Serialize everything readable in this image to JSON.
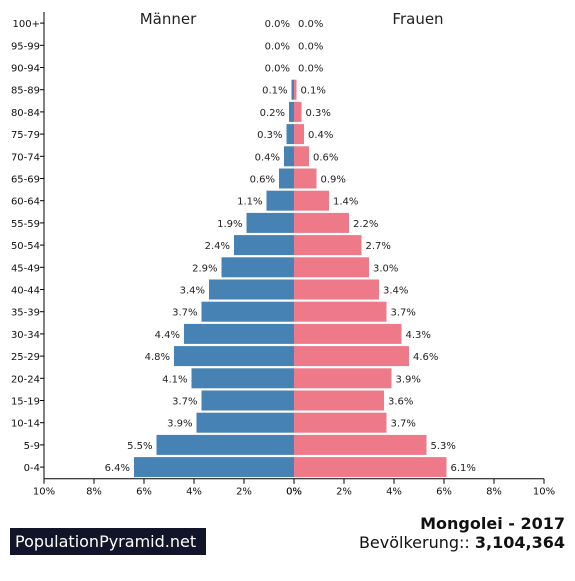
{
  "chart_data": {
    "type": "bar",
    "orientation": "horizontal-pyramid",
    "categories": [
      "100+",
      "95-99",
      "90-94",
      "85-89",
      "80-84",
      "75-79",
      "70-74",
      "65-69",
      "60-64",
      "55-59",
      "50-54",
      "45-49",
      "40-44",
      "35-39",
      "30-34",
      "25-29",
      "20-24",
      "15-19",
      "10-14",
      "5-9",
      "0-4"
    ],
    "series": [
      {
        "name": "Männer",
        "color": "#4682b4",
        "values": [
          0.0,
          0.0,
          0.0,
          0.1,
          0.2,
          0.3,
          0.4,
          0.6,
          1.1,
          1.9,
          2.4,
          2.9,
          3.4,
          3.7,
          4.4,
          4.8,
          4.1,
          3.7,
          3.9,
          5.5,
          6.4
        ],
        "labels": [
          "0.0%",
          "0.0%",
          "0.0%",
          "0.1%",
          "0.2%",
          "0.3%",
          "0.4%",
          "0.6%",
          "1.1%",
          "1.9%",
          "2.4%",
          "2.9%",
          "3.4%",
          "3.7%",
          "4.4%",
          "4.8%",
          "4.1%",
          "3.7%",
          "3.9%",
          "5.5%",
          "6.4%"
        ]
      },
      {
        "name": "Frauen",
        "color": "#ee7989",
        "values": [
          0.0,
          0.0,
          0.0,
          0.1,
          0.3,
          0.4,
          0.6,
          0.9,
          1.4,
          2.2,
          2.7,
          3.0,
          3.4,
          3.7,
          4.3,
          4.6,
          3.9,
          3.6,
          3.7,
          5.3,
          6.1
        ],
        "labels": [
          "0.0%",
          "0.0%",
          "0.0%",
          "0.1%",
          "0.3%",
          "0.4%",
          "0.6%",
          "0.9%",
          "1.4%",
          "2.2%",
          "2.7%",
          "3.0%",
          "3.4%",
          "3.7%",
          "4.3%",
          "4.6%",
          "3.9%",
          "3.6%",
          "3.7%",
          "5.3%",
          "6.1%"
        ]
      }
    ],
    "xlim": [
      0,
      10
    ],
    "left_ticks": [
      "10%",
      "8%",
      "6%",
      "4%",
      "2%",
      "0%"
    ],
    "right_ticks": [
      "0%",
      "2%",
      "4%",
      "6%",
      "8%",
      "10%"
    ],
    "grid": false
  },
  "footer": {
    "logo": "PopulationPyramid.net",
    "country": "Mongolei - 2017",
    "population_label": "Bevölkerung::",
    "population_value": "3,104,364"
  }
}
